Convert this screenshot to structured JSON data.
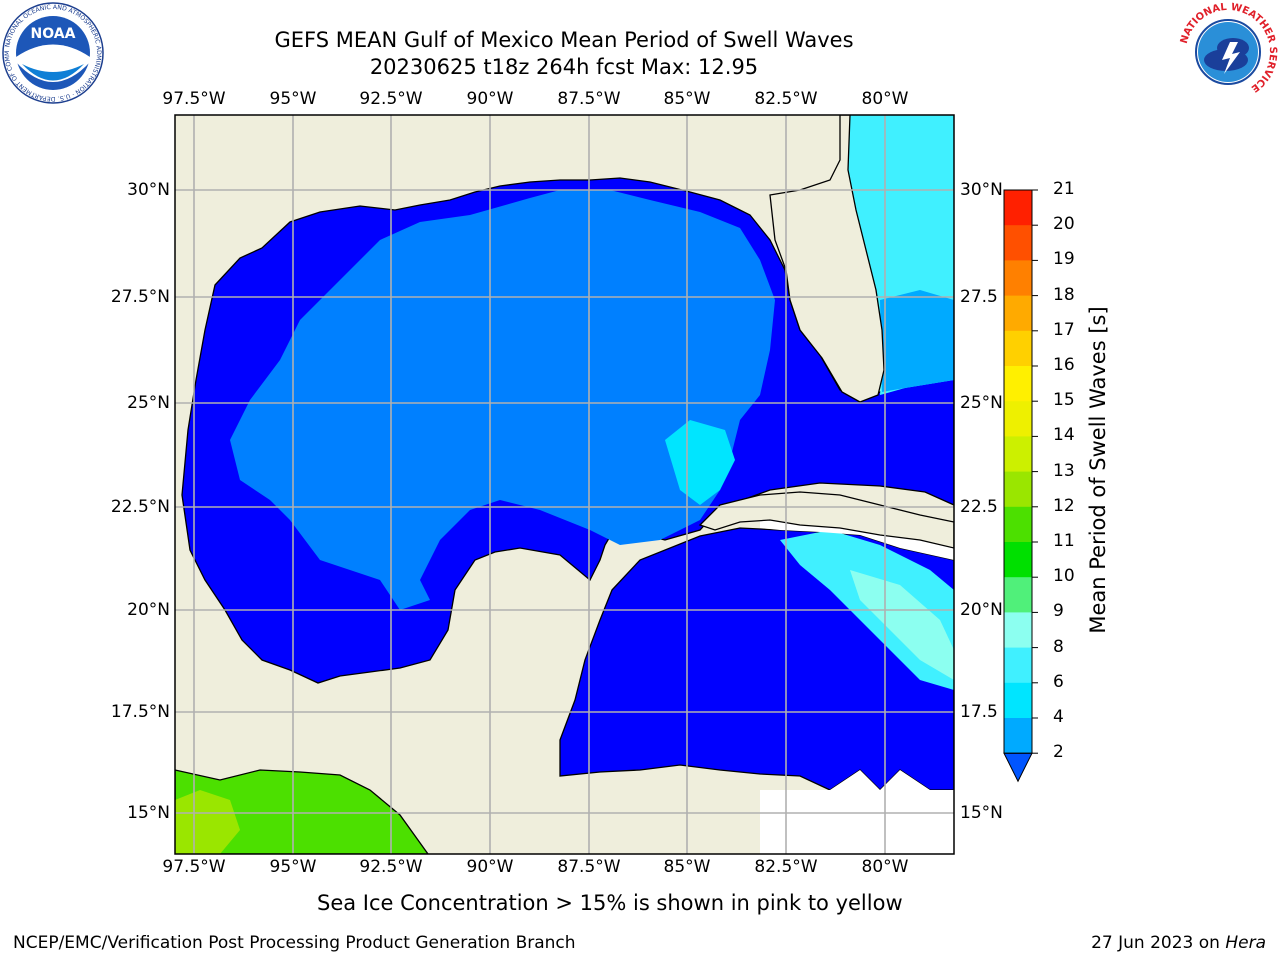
{
  "title": {
    "line1": "GEFS MEAN Gulf of Mexico Mean Period of Swell Waves",
    "line2": "20230625 t18z 264h fcst   Max: 12.95"
  },
  "lon_labels": [
    "97.5°W",
    "95°W",
    "92.5°W",
    "90°W",
    "87.5°W",
    "85°W",
    "82.5°W",
    "80°W"
  ],
  "lat_labels_left": [
    "30°N",
    "27.5°N",
    "25°N",
    "22.5°N",
    "20°N",
    "17.5°N",
    "15°N"
  ],
  "lat_labels_right": [
    "30°N",
    "27.5",
    "25°N",
    "22.5",
    "20°N",
    "17.5",
    "15°N"
  ],
  "colorbar": {
    "label": "Mean Period of Swell Waves [s]",
    "ticks": [
      "2",
      "4",
      "6",
      "8",
      "9",
      "10",
      "11",
      "12",
      "13",
      "14",
      "15",
      "16",
      "17",
      "18",
      "19",
      "20",
      "21"
    ],
    "colors": [
      "#0055ff",
      "#00aaff",
      "#00e5ff",
      "#40f0ff",
      "#8cfff0",
      "#50f07a",
      "#00e000",
      "#4ce000",
      "#9ae600",
      "#ccf000",
      "#eef000",
      "#fff000",
      "#ffd000",
      "#ffaa00",
      "#ff8000",
      "#ff5000",
      "#ff2000",
      "#ff0000"
    ]
  },
  "note": "Sea Ice Concentration > 15% is shown in pink to yellow",
  "footer_left": "NCEP/EMC/Verification Post Processing Product Generation Branch",
  "footer_right_date": "27 Jun 2023 on ",
  "footer_right_host": "Hera",
  "logos": {
    "noaa_text": "NOAA",
    "noaa_ring": "NATIONAL OCEANIC AND ATMOSPHERIC ADMINISTRATION · U.S. DEPARTMENT OF COMMERCE",
    "nws_ring": "NATIONAL WEATHER SERVICE"
  }
}
